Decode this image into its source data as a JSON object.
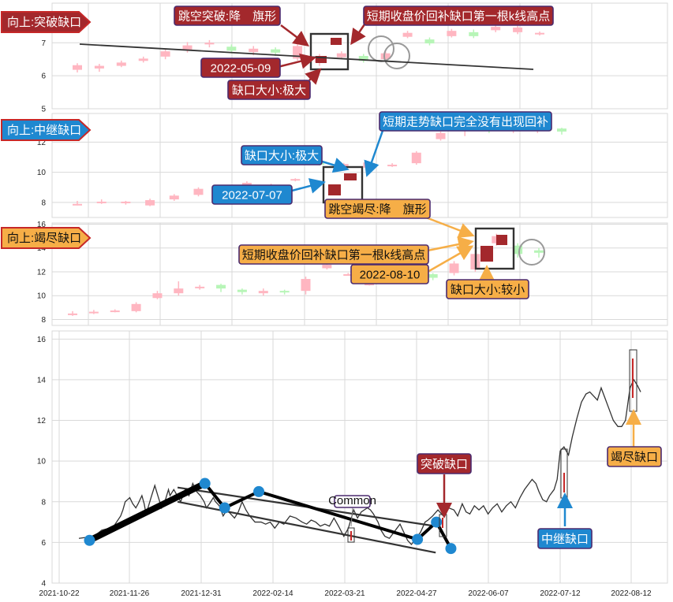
{
  "chart_data": [
    {
      "type": "candlestick",
      "panel_label": "向上:突破缺口",
      "yticks": [
        5,
        6,
        7
      ],
      "ylim": [
        5,
        8.2
      ],
      "annotations": {
        "pattern": "跳空突破:降　旗形",
        "high_note": "短期收盘价回补缺口第一根k线高点",
        "date": "2022-05-09",
        "size": "缺口大小:极大"
      },
      "candles": [
        [
          6.18,
          6.32,
          6.1,
          6.38
        ],
        [
          6.22,
          6.3,
          6.12,
          6.36
        ],
        [
          6.3,
          6.4,
          6.26,
          6.46
        ],
        [
          6.45,
          6.52,
          6.4,
          6.58
        ],
        [
          6.58,
          6.74,
          6.5,
          6.8
        ],
        [
          6.78,
          6.92,
          6.7,
          7.02
        ],
        [
          6.95,
          7.0,
          6.86,
          7.08
        ],
        [
          6.88,
          6.76,
          6.68,
          6.95
        ],
        [
          6.72,
          6.82,
          6.62,
          6.9
        ],
        [
          6.8,
          6.7,
          6.6,
          6.86
        ],
        [
          6.52,
          6.9,
          6.46,
          6.96
        ],
        [
          6.4,
          6.6,
          6.3,
          6.66
        ],
        [
          6.56,
          6.68,
          6.5,
          6.74
        ],
        [
          6.6,
          6.45,
          6.4,
          6.66
        ],
        [
          6.5,
          6.68,
          6.44,
          6.74
        ],
        [
          7.18,
          7.3,
          7.14,
          7.36
        ],
        [
          7.1,
          6.98,
          6.92,
          7.16
        ],
        [
          7.2,
          7.36,
          7.16,
          7.42
        ],
        [
          7.32,
          7.2,
          7.14,
          7.4
        ],
        [
          7.38,
          7.48,
          7.32,
          7.54
        ],
        [
          7.32,
          7.46,
          7.26,
          7.52
        ],
        [
          7.3,
          7.3,
          7.22,
          7.34
        ]
      ]
    },
    {
      "type": "candlestick",
      "panel_label": "向上:中继缺口",
      "yticks": [
        8,
        10,
        12
      ],
      "ylim": [
        7.0,
        13.9
      ],
      "annotations": {
        "size": "缺口大小:极大",
        "note": "短期走势缺口完全没有出现回补",
        "date": "2022-07-07",
        "pattern": "跳空竭尽:降　旗形"
      },
      "candles": [
        [
          7.9,
          7.9,
          7.8,
          8.1
        ],
        [
          8.0,
          8.05,
          7.9,
          8.2
        ],
        [
          7.95,
          8.05,
          7.85,
          8.1
        ],
        [
          7.8,
          8.15,
          7.75,
          8.25
        ],
        [
          8.2,
          8.45,
          8.1,
          8.55
        ],
        [
          8.5,
          8.9,
          8.4,
          9.0
        ],
        [
          8.9,
          9.05,
          8.8,
          9.15
        ],
        [
          8.9,
          9.3,
          8.8,
          9.4
        ],
        [
          9.1,
          9.15,
          9.0,
          9.25
        ],
        [
          9.5,
          9.55,
          9.4,
          9.6
        ],
        [
          10.6,
          10.55,
          10.45,
          10.7
        ],
        [
          10.4,
          10.55,
          10.3,
          10.62
        ],
        [
          10.3,
          10.65,
          10.2,
          10.75
        ],
        [
          10.4,
          10.5,
          10.35,
          10.6
        ],
        [
          10.6,
          11.3,
          10.5,
          11.4
        ],
        [
          12.2,
          12.6,
          12.1,
          12.7
        ],
        [
          13.0,
          13.05,
          12.4,
          13.3
        ],
        [
          13.1,
          13.0,
          12.6,
          13.2
        ],
        [
          12.9,
          13.0,
          12.6,
          13.2
        ],
        [
          12.9,
          13.1,
          12.6,
          13.3
        ],
        [
          12.9,
          12.7,
          12.5,
          12.95
        ]
      ]
    },
    {
      "type": "candlestick",
      "panel_label": "向上:竭尽缺口",
      "yticks": [
        8,
        10,
        12,
        14,
        16
      ],
      "ylim": [
        7.5,
        16.1
      ],
      "annotations": {
        "high_note": "短期收盘价回补缺口第一根k线高点",
        "date": "2022-08-10",
        "size": "缺口大小:较小"
      },
      "candles": [
        [
          8.5,
          8.5,
          8.3,
          8.7
        ],
        [
          8.6,
          8.65,
          8.45,
          8.8
        ],
        [
          8.7,
          8.75,
          8.6,
          8.85
        ],
        [
          8.7,
          9.3,
          8.6,
          9.45
        ],
        [
          9.8,
          10.2,
          9.7,
          10.4
        ],
        [
          10.2,
          10.6,
          10.0,
          11.2
        ],
        [
          10.7,
          10.75,
          10.5,
          10.9
        ],
        [
          10.9,
          10.6,
          10.3,
          11.0
        ],
        [
          10.5,
          10.3,
          10.1,
          10.6
        ],
        [
          10.2,
          10.4,
          10.0,
          10.6
        ],
        [
          10.4,
          10.3,
          10.1,
          10.5
        ],
        [
          10.4,
          11.4,
          10.1,
          11.6
        ],
        [
          12.3,
          12.6,
          12.2,
          12.7
        ],
        [
          11.8,
          11.8,
          11.7,
          11.9
        ],
        [
          11.0,
          11.0,
          10.85,
          11.15
        ],
        [
          11.8,
          11.6,
          11.4,
          12.0
        ],
        [
          11.7,
          12.1,
          11.6,
          12.2
        ],
        [
          11.8,
          11.5,
          11.3,
          11.9
        ],
        [
          11.9,
          12.7,
          11.7,
          12.9
        ],
        [
          12.2,
          13.5,
          12.0,
          13.8
        ],
        [
          14.4,
          15.0,
          14.2,
          15.2
        ],
        [
          14.2,
          13.5,
          13.2,
          14.4
        ],
        [
          13.8,
          13.6,
          13.2,
          14.0
        ]
      ]
    },
    {
      "type": "line",
      "xticks": [
        "2021-10-22",
        "2021-11-26",
        "2021-12-31",
        "2022-02-14",
        "2022-03-21",
        "2022-04-27",
        "2022-06-07",
        "2022-07-12",
        "2022-08-12"
      ],
      "yticks": [
        4,
        6,
        8,
        10,
        12,
        14,
        16
      ],
      "ylim": [
        4,
        16.4
      ],
      "series": [
        {
          "values": [
            [
              0,
              6.2
            ],
            [
              20,
              6.3
            ],
            [
              30,
              6.6
            ],
            [
              40,
              6.7
            ],
            [
              46,
              6.8
            ],
            [
              55,
              7.3
            ],
            [
              58,
              7.6
            ],
            [
              61,
              8.0
            ],
            [
              64,
              8.1
            ],
            [
              67,
              8.2
            ],
            [
              71,
              7.9
            ],
            [
              75,
              7.7
            ],
            [
              78,
              7.9
            ],
            [
              83,
              8.3
            ],
            [
              86,
              7.9
            ],
            [
              88,
              7.5
            ],
            [
              91,
              7.7
            ],
            [
              95,
              8.2
            ],
            [
              100,
              8.8
            ],
            [
              104,
              8.3
            ],
            [
              109,
              7.7
            ],
            [
              114,
              8.1
            ],
            [
              118,
              8.6
            ],
            [
              120,
              8.3
            ],
            [
              125,
              8.6
            ],
            [
              128,
              8.4
            ],
            [
              134,
              8.0
            ],
            [
              140,
              8.6
            ],
            [
              145,
              8.3
            ],
            [
              150,
              8.9
            ],
            [
              155,
              8.5
            ],
            [
              160,
              8.3
            ],
            [
              165,
              8.0
            ],
            [
              168,
              7.7
            ],
            [
              172,
              7.9
            ],
            [
              177,
              8.2
            ],
            [
              180,
              8.0
            ],
            [
              185,
              7.8
            ],
            [
              190,
              7.3
            ],
            [
              195,
              7.6
            ],
            [
              200,
              7.4
            ],
            [
              205,
              7.2
            ],
            [
              210,
              7.5
            ],
            [
              215,
              8.0
            ],
            [
              220,
              7.6
            ],
            [
              225,
              7.3
            ],
            [
              232,
              7.0
            ],
            [
              240,
              7.0
            ],
            [
              246,
              6.9
            ],
            [
              252,
              7.0
            ],
            [
              258,
              6.7
            ],
            [
              264,
              7.0
            ],
            [
              270,
              6.9
            ],
            [
              278,
              7.3
            ],
            [
              286,
              7.2
            ],
            [
              294,
              7.0
            ],
            [
              300,
              6.9
            ],
            [
              306,
              7.1
            ],
            [
              312,
              7.0
            ],
            [
              318,
              6.8
            ],
            [
              324,
              6.9
            ],
            [
              330,
              6.8
            ],
            [
              336,
              7.2
            ],
            [
              342,
              6.8
            ],
            [
              349,
              6.3
            ],
            [
              355,
              6.7
            ],
            [
              362,
              7.6
            ],
            [
              367,
              7.2
            ],
            [
              372,
              7.5
            ],
            [
              380,
              7.7
            ],
            [
              384,
              7.6
            ],
            [
              388,
              7.4
            ],
            [
              394,
              7.0
            ],
            [
              398,
              6.6
            ],
            [
              403,
              6.3
            ],
            [
              409,
              6.2
            ],
            [
              415,
              6.5
            ],
            [
              419,
              6.7
            ],
            [
              423,
              6.9
            ],
            [
              428,
              6.5
            ],
            [
              433,
              6.1
            ],
            [
              438,
              5.9
            ],
            [
              444,
              6.2
            ],
            [
              450,
              6.5
            ],
            [
              456,
              7.0
            ],
            [
              460,
              7.1
            ],
            [
              466,
              7.3
            ],
            [
              473,
              7.6
            ],
            [
              480,
              7.3
            ],
            [
              487,
              7.7
            ],
            [
              494,
              7.6
            ],
            [
              499,
              7.3
            ],
            [
              505,
              7.9
            ],
            [
              510,
              7.5
            ],
            [
              515,
              7.4
            ],
            [
              521,
              7.8
            ],
            [
              527,
              7.6
            ],
            [
              533,
              7.8
            ],
            [
              539,
              7.4
            ],
            [
              545,
              7.7
            ],
            [
              551,
              7.9
            ],
            [
              557,
              7.5
            ],
            [
              563,
              7.8
            ],
            [
              569,
              8.0
            ],
            [
              575,
              7.7
            ],
            [
              581,
              8.2
            ],
            [
              587,
              8.6
            ],
            [
              593,
              8.9
            ],
            [
              597,
              9.1
            ],
            [
              602,
              8.9
            ],
            [
              606,
              8.5
            ],
            [
              611,
              8.1
            ],
            [
              616,
              8.0
            ],
            [
              620,
              8.3
            ],
            [
              626,
              8.6
            ],
            [
              630,
              9.1
            ],
            [
              634,
              10.5
            ],
            [
              639,
              10.7
            ],
            [
              645,
              10.3
            ],
            [
              650,
              11.2
            ],
            [
              656,
              12.1
            ],
            [
              662,
              12.9
            ],
            [
              668,
              13.3
            ],
            [
              673,
              13.4
            ],
            [
              678,
              13.2
            ],
            [
              683,
              13.0
            ],
            [
              688,
              13.6
            ],
            [
              693,
              13.1
            ],
            [
              698,
              12.6
            ],
            [
              704,
              12.0
            ],
            [
              710,
              11.7
            ],
            [
              715,
              11.7
            ],
            [
              720,
              12.0
            ],
            [
              726,
              13.6
            ],
            [
              731,
              14.0
            ],
            [
              736,
              13.7
            ],
            [
              740,
              13.4
            ]
          ]
        }
      ],
      "annotations": [
        {
          "label": "突破缺口"
        },
        {
          "label": "中继缺口"
        },
        {
          "label": "竭尽缺口"
        },
        {
          "label": "Common"
        }
      ],
      "pivots": [
        [
          14,
          6.1
        ],
        [
          166,
          8.9
        ],
        [
          192,
          7.7
        ],
        [
          237,
          8.5
        ],
        [
          446,
          6.15
        ],
        [
          471,
          7.0
        ],
        [
          490,
          5.7
        ]
      ]
    }
  ],
  "colors": {
    "up_candle": "#ffb6c1",
    "down_candle": "#b7f5b7",
    "focus_candle": "#a3282c",
    "grid": "#d9d9d9",
    "red_label": "#a3282c",
    "blue_label": "#1f88d0",
    "orange_label": "#f6ae47",
    "blue_arrow": "#1f88d0",
    "orange_arrow": "#f6ae47",
    "label_border": "#4b2a6e"
  }
}
